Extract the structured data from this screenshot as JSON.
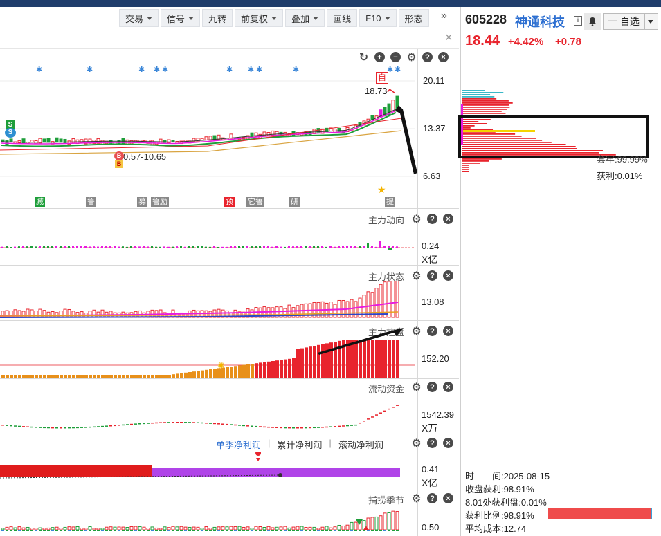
{
  "toolbar": {
    "buttons": [
      {
        "label": "交易",
        "dropdown": true
      },
      {
        "label": "信号",
        "dropdown": true
      },
      {
        "label": "九转",
        "dropdown": false
      },
      {
        "label": "前复权",
        "dropdown": true
      },
      {
        "label": "叠加",
        "dropdown": true
      },
      {
        "label": "画线",
        "dropdown": false
      },
      {
        "label": "F10",
        "dropdown": true
      },
      {
        "label": "形态",
        "dropdown": false
      }
    ],
    "more": "»",
    "close": "×"
  },
  "main_chart": {
    "axis": {
      "high": "20.11",
      "mid": "13.37",
      "low": "6.63"
    },
    "last_price_label": "18.73",
    "self_mark": "自",
    "range_label": "0.57-10.65",
    "signal_s": "S",
    "signal_b": "B",
    "event_tags": [
      "减",
      "鲁",
      "募",
      "鲁励",
      "预",
      "它鲁",
      "研",
      "提"
    ]
  },
  "panels": {
    "zhuli_dongxiang": {
      "title": "主力动向",
      "value": "0.24",
      "unit": "X亿"
    },
    "zhuli_zhuangtai": {
      "title": "主力状态",
      "value": "13.08"
    },
    "zhuli_kongpan": {
      "title": "主力控盘",
      "value": "152.20"
    },
    "liudong_zijin": {
      "title": "流动资金",
      "value": "1542.39",
      "unit": "X万"
    },
    "profit": {
      "tabs": [
        "单季净利润",
        "累计净利润",
        "滚动净利润"
      ],
      "value": "0.41",
      "unit": "X亿"
    },
    "buhuo_jijie": {
      "title": "捕捞季节",
      "value": "0.50"
    }
  },
  "right": {
    "code": "605228",
    "name": "神通科技",
    "info": "i",
    "watch_label": "一 自选",
    "price": "18.44",
    "pct": "+4.42%",
    "change": "+0.78",
    "chip_top_label": "套牢:99.99%",
    "chip_profit": "获利:0.01%",
    "time_label": "时　　间:2025-08-15",
    "close_profit": "收盘获利:98.91%",
    "profit_at": "8.01处获利盘:0.01%",
    "profit_ratio": "获利比例:98.91%",
    "avg_cost": "平均成本:12.74",
    "profit_ratio_value": 0.9891
  },
  "colors": {
    "up": "#e8242d",
    "down": "#1e9e3a",
    "accent": "#2d6fd1"
  }
}
